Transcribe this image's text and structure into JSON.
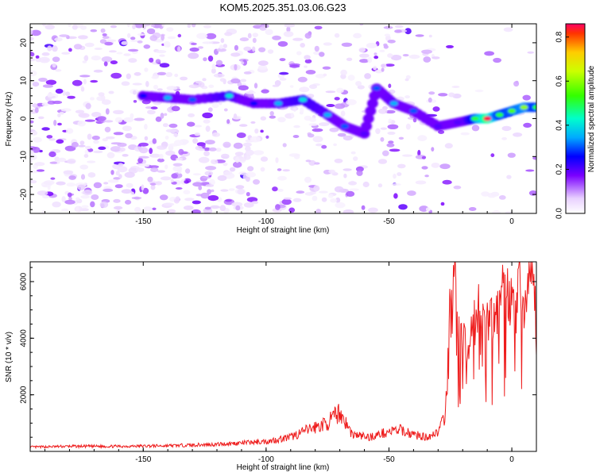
{
  "figure_title": "KOM5.2025.351.03.06.G23",
  "colors": {
    "snr_line": "#ee1c1c",
    "axis": "#000000",
    "background": "#ffffff"
  },
  "chart_data": [
    {
      "type": "heatmap",
      "title": "KOM5.2025.351.03.06.G23",
      "xlabel": "Height of straight line (km)",
      "ylabel": "Frequency (Hz)",
      "xlim": [
        -196,
        10
      ],
      "ylim": [
        -25,
        25
      ],
      "xticks": [
        -150,
        -100,
        -50,
        0
      ],
      "yticks": [
        -20,
        -10,
        0,
        10,
        20
      ],
      "xtick_labels": [
        "-150",
        "-100",
        "-50",
        "0"
      ],
      "ytick_labels": [
        "-20",
        "-10",
        "0",
        "10",
        "20"
      ],
      "colorbar": {
        "label": "Normalized spectral amplitude",
        "range": [
          0.0,
          0.86
        ],
        "ticks": [
          0.0,
          0.2,
          0.4,
          0.6,
          0.8
        ],
        "tick_labels": [
          "0.0",
          "0.2",
          "0.4",
          "0.6",
          "0.8"
        ]
      },
      "ridge": [
        {
          "x": -150,
          "y": 6,
          "v": 0.25
        },
        {
          "x": -140,
          "y": 5.5,
          "v": 0.35
        },
        {
          "x": -130,
          "y": 5,
          "v": 0.3
        },
        {
          "x": -115,
          "y": 6,
          "v": 0.4
        },
        {
          "x": -105,
          "y": 4,
          "v": 0.25
        },
        {
          "x": -95,
          "y": 4,
          "v": 0.35
        },
        {
          "x": -85,
          "y": 5,
          "v": 0.4
        },
        {
          "x": -75,
          "y": 1,
          "v": 0.35
        },
        {
          "x": -68,
          "y": -2,
          "v": 0.3
        },
        {
          "x": -60,
          "y": -4,
          "v": 0.2
        },
        {
          "x": -55,
          "y": 8,
          "v": 0.3
        },
        {
          "x": -48,
          "y": 4,
          "v": 0.35
        },
        {
          "x": -40,
          "y": 2,
          "v": 0.3
        },
        {
          "x": -30,
          "y": -2,
          "v": 0.2
        },
        {
          "x": -22,
          "y": -1,
          "v": 0.2
        },
        {
          "x": -15,
          "y": 0,
          "v": 0.5
        },
        {
          "x": -10,
          "y": 0,
          "v": 0.85
        },
        {
          "x": -5,
          "y": 1,
          "v": 0.5
        },
        {
          "x": 0,
          "y": 2,
          "v": 0.55
        },
        {
          "x": 5,
          "y": 3,
          "v": 0.6
        },
        {
          "x": 10,
          "y": 3,
          "v": 0.5
        }
      ]
    },
    {
      "type": "line",
      "xlabel": "Height of straight line (km)",
      "ylabel": "SNR (10 * v/v)",
      "xlim": [
        -196,
        10
      ],
      "ylim": [
        0,
        6700
      ],
      "xticks": [
        -150,
        -100,
        -50,
        0
      ],
      "yticks": [
        2000,
        4000,
        6000
      ],
      "xtick_labels": [
        "-150",
        "-100",
        "-50",
        "0"
      ],
      "ytick_labels": [
        "2000",
        "4000",
        "6000"
      ],
      "series": [
        {
          "name": "SNR",
          "x": [
            -196,
            -180,
            -160,
            -140,
            -120,
            -110,
            -100,
            -90,
            -82,
            -75,
            -70,
            -65,
            -58,
            -50,
            -45,
            -40,
            -35,
            -30,
            -27,
            -25,
            -23,
            -21,
            -20,
            -18,
            -15,
            -12,
            -10,
            -8,
            -5,
            -3,
            0,
            3,
            5,
            8,
            10
          ],
          "y": [
            150,
            180,
            180,
            200,
            250,
            300,
            350,
            500,
            800,
            1000,
            1400,
            600,
            500,
            700,
            750,
            600,
            500,
            700,
            1200,
            5500,
            6600,
            3800,
            4200,
            3500,
            5000,
            5200,
            4800,
            4600,
            5100,
            6000,
            5200,
            6300,
            4800,
            6600,
            4500
          ]
        }
      ]
    }
  ]
}
